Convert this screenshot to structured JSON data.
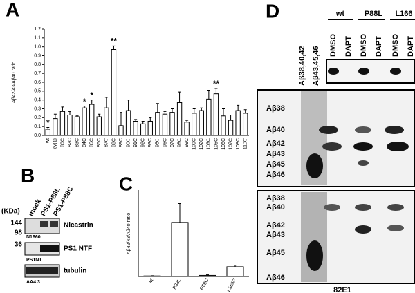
{
  "chart_data": [
    {
      "type": "bar",
      "panel": "A",
      "ylabel": "Aβ42/43/Aβ40 ratio",
      "categories": [
        "wt",
        "cy(1)",
        "80C",
        "82C",
        "83C",
        "84C",
        "85C",
        "86C",
        "87C",
        "88C",
        "89C",
        "90C",
        "91C",
        "92C",
        "93C",
        "95C",
        "96C",
        "97C",
        "98C",
        "99C",
        "100C",
        "102C",
        "103C",
        "105C",
        "106C",
        "107C",
        "108C",
        "110C"
      ],
      "values": [
        0.07,
        0.19,
        0.27,
        0.23,
        0.21,
        0.31,
        0.35,
        0.21,
        0.31,
        0.97,
        0.11,
        0.28,
        0.16,
        0.13,
        0.16,
        0.26,
        0.24,
        0.26,
        0.37,
        0.15,
        0.25,
        0.28,
        0.41,
        0.47,
        0.22,
        0.17,
        0.28,
        0.25
      ],
      "errors": [
        0.02,
        0.05,
        0.05,
        0.04,
        0.01,
        0.02,
        0.05,
        0.03,
        0.12,
        0.04,
        0.15,
        0.12,
        0.02,
        0.03,
        0.04,
        0.1,
        0.03,
        0.04,
        0.12,
        0.02,
        0.05,
        0.03,
        0.1,
        0.06,
        0.08,
        0.06,
        0.06,
        0.04
      ],
      "significance": [
        "*",
        null,
        null,
        null,
        null,
        "*",
        "*",
        null,
        null,
        "**",
        null,
        null,
        null,
        null,
        null,
        null,
        null,
        null,
        null,
        null,
        null,
        null,
        null,
        "**",
        null,
        null,
        null,
        null
      ],
      "color": "#ffffff",
      "ylim": [
        0,
        1.2
      ],
      "yticks": [
        {
          "value": 0,
          "label": "0.0"
        },
        {
          "value": 0.1,
          "label": "0.1"
        },
        {
          "value": 0.2,
          "label": "0.2"
        },
        {
          "value": 0.3,
          "label": "0.3"
        },
        {
          "value": 0.4,
          "label": "0.4"
        },
        {
          "value": 0.5,
          "label": "0.5"
        },
        {
          "value": 0.6,
          "label": "0.6"
        },
        {
          "value": 0.7,
          "label": "0.7"
        },
        {
          "value": 0.8,
          "label": "0.8"
        },
        {
          "value": 0.9,
          "label": "0.9"
        },
        {
          "value": 1.0,
          "label": "1.0"
        },
        {
          "value": 1.1,
          "label": "1.1"
        },
        {
          "value": 1.2,
          "label": "1.2"
        }
      ]
    },
    {
      "type": "bar",
      "panel": "C",
      "ylabel": "Aβ42/43/Aβ40 ratio",
      "categories": [
        "wt",
        "P88L",
        "P88C",
        "L166P"
      ],
      "values": [
        0.1,
        10,
        0.2,
        1.8
      ],
      "errors": [
        0.05,
        3.5,
        0.1,
        0.3
      ],
      "color": "#ffffff",
      "ylim": [
        0,
        16
      ]
    }
  ],
  "panel_b": {
    "letter": "B",
    "unit": "(KDa)",
    "lanes": [
      "mock",
      "PS1-P88L",
      "PS1-P88C"
    ],
    "markers": [
      "144",
      "98",
      "36"
    ],
    "blots": [
      {
        "protein": "Nicastrin",
        "antibody": "N1660"
      },
      {
        "protein": "PS1 NTF",
        "antibody": "PS1NT"
      },
      {
        "protein": "tubulin",
        "antibody": "AA4.3"
      }
    ]
  },
  "panel_d": {
    "letter": "D",
    "groups": [
      "wt",
      "P88L",
      "L166"
    ],
    "treatments": [
      "DMSO",
      "DAPT",
      "DMSO",
      "DAPT",
      "DMSO",
      "DAPT"
    ],
    "standards": [
      "Aβ38,40,42",
      "Aβ43,45,46"
    ],
    "upper_bands": [
      "Aβ38",
      "Aβ40",
      "Aβ42",
      "Aβ43",
      "Aβ45",
      "Aβ46"
    ],
    "lower_bands": [
      "Aβ38",
      "Aβ40",
      "Aβ42",
      "Aβ43",
      "Aβ45",
      "Aβ46"
    ],
    "antibody": "82E1"
  }
}
